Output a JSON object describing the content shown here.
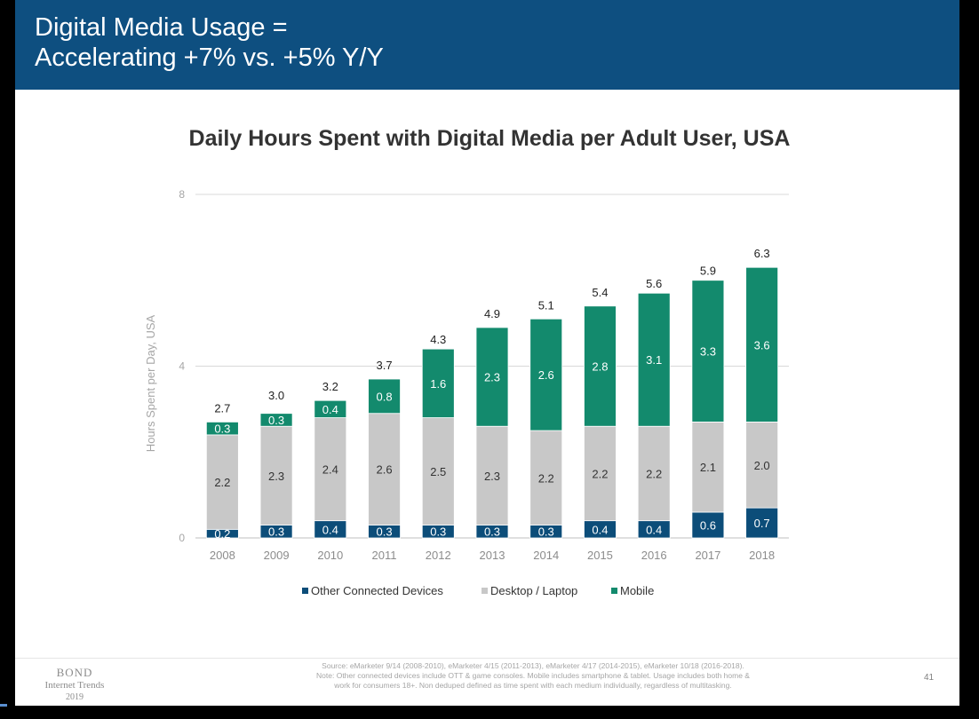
{
  "header": {
    "title_line1": "Digital Media Usage =",
    "title_line2": "Accelerating +7% vs. +5% Y/Y"
  },
  "colors": {
    "header_bg": "#0e4f80",
    "other": "#0c4d79",
    "desktop": "#c8c8c8",
    "mobile": "#138a6d"
  },
  "chart_data": {
    "type": "bar",
    "stacked": true,
    "title": "Daily Hours Spent with Digital Media per Adult User, USA",
    "xlabel": "",
    "ylabel": "Hours Spent per Day, USA",
    "ylim": [
      0,
      8
    ],
    "yticks": [
      "0",
      "4",
      "8"
    ],
    "grid": true,
    "legend_position": "bottom",
    "categories": [
      "2008",
      "2009",
      "2010",
      "2011",
      "2012",
      "2013",
      "2014",
      "2015",
      "2016",
      "2017",
      "2018"
    ],
    "series": [
      {
        "name": "Other Connected Devices",
        "values": [
          0.2,
          0.3,
          0.4,
          0.3,
          0.3,
          0.3,
          0.3,
          0.4,
          0.4,
          0.6,
          0.7
        ],
        "labels": [
          "0.2",
          "0.3",
          "0.4",
          "0.3",
          "0.3",
          "0.3",
          "0.3",
          "0.4",
          "0.4",
          "0.6",
          "0.7"
        ]
      },
      {
        "name": "Desktop / Laptop",
        "values": [
          2.2,
          2.3,
          2.4,
          2.6,
          2.5,
          2.3,
          2.2,
          2.2,
          2.2,
          2.1,
          2.0
        ],
        "labels": [
          "2.2",
          "2.3",
          "2.4",
          "2.6",
          "2.5",
          "2.3",
          "2.2",
          "2.2",
          "2.2",
          "2.1",
          "2.0"
        ]
      },
      {
        "name": "Mobile",
        "values": [
          0.3,
          0.3,
          0.4,
          0.8,
          1.6,
          2.3,
          2.6,
          2.8,
          3.1,
          3.3,
          3.6
        ],
        "labels": [
          "0.3",
          "0.3",
          "0.4",
          "0.8",
          "1.6",
          "2.3",
          "2.6",
          "2.8",
          "3.1",
          "3.3",
          "3.6"
        ]
      }
    ],
    "totals": [
      2.7,
      3.0,
      3.2,
      3.7,
      4.3,
      4.9,
      5.1,
      5.4,
      5.6,
      5.9,
      6.3
    ],
    "total_labels": [
      "2.7",
      "3.0",
      "3.2",
      "3.7",
      "4.3",
      "4.9",
      "5.1",
      "5.4",
      "5.6",
      "5.9",
      "6.3"
    ]
  },
  "footer": {
    "bond_line1": "BOND",
    "bond_line2": "Internet Trends",
    "bond_line3": "2019",
    "source_line1": "Source: eMarketer 9/14 (2008-2010), eMarketer 4/15 (2011-2013), eMarketer 4/17 (2014-2015), eMarketer 10/18 (2016-2018).",
    "source_line2": "Note: Other connected devices include OTT & game consoles. Mobile includes smartphone & tablet. Usage includes both home &",
    "source_line3": "work for consumers 18+. Non deduped defined as time spent with each medium individually, regardless of multitasking.",
    "page_number": "41"
  }
}
